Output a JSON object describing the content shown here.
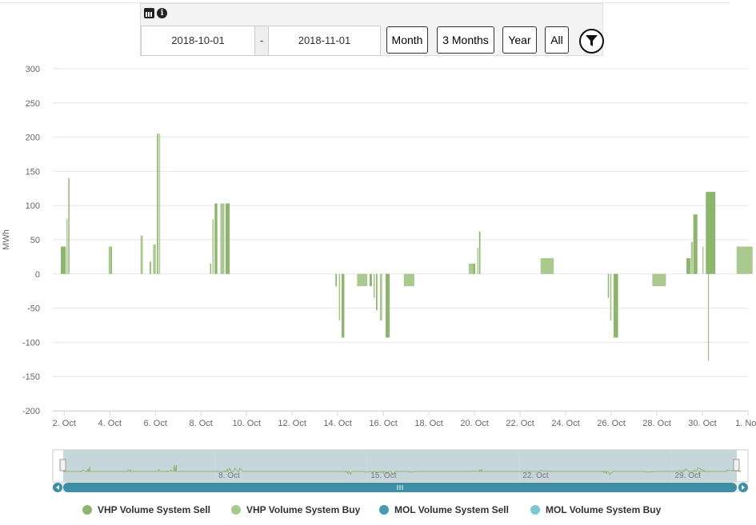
{
  "toolbar": {
    "start_date": "2018-10-01",
    "separator": "-",
    "end_date": "2018-11-01",
    "buttons": [
      "Month",
      "3 Months",
      "Year",
      "All"
    ]
  },
  "colors": {
    "vhp_sell": "#8db56e",
    "vhp_buy": "#a9c98f",
    "mol_sell": "#4a9ab1",
    "mol_buy": "#79c7cf",
    "grid": "#e6e6e6",
    "navigator_mask": "#b3c8cf",
    "scrollbar": "#3e8ea6"
  },
  "chart_data": {
    "type": "bar",
    "ylabel": "MWh",
    "ylim": [
      -200,
      300
    ],
    "yticks": [
      300,
      250,
      200,
      150,
      100,
      50,
      0,
      -50,
      -100,
      -150,
      -200
    ],
    "xlim": [
      1.5,
      32.0
    ],
    "xticks": [
      {
        "v": 2,
        "label": "2. Oct"
      },
      {
        "v": 4,
        "label": "4. Oct"
      },
      {
        "v": 6,
        "label": "6. Oct"
      },
      {
        "v": 8,
        "label": "8. Oct"
      },
      {
        "v": 10,
        "label": "10. Oct"
      },
      {
        "v": 12,
        "label": "12. Oct"
      },
      {
        "v": 14,
        "label": "14. Oct"
      },
      {
        "v": 16,
        "label": "16. Oct"
      },
      {
        "v": 18,
        "label": "18. Oct"
      },
      {
        "v": 20,
        "label": "20. Oct"
      },
      {
        "v": 22,
        "label": "22. Oct"
      },
      {
        "v": 24,
        "label": "24. Oct"
      },
      {
        "v": 26,
        "label": "26. Oct"
      },
      {
        "v": 28,
        "label": "28. Oct"
      },
      {
        "v": 30,
        "label": "30. Oct"
      },
      {
        "v": 32,
        "label": "1. Nov"
      }
    ],
    "navigator_labels": [
      {
        "v": 8,
        "label": "8. Oct"
      },
      {
        "v": 15,
        "label": "15. Oct"
      },
      {
        "v": 22,
        "label": "22. Oct"
      },
      {
        "v": 29,
        "label": "29. Oct"
      }
    ],
    "series": [
      {
        "name": "VHP Volume System Sell",
        "values": [
          [
            1.85,
            40,
            0.22
          ],
          [
            2.1,
            80,
            0.05
          ],
          [
            2.18,
            140,
            0.05
          ],
          [
            3.95,
            40,
            0.1
          ],
          [
            4.05,
            40,
            0.05
          ],
          [
            5.35,
            56,
            0.1
          ],
          [
            5.75,
            18,
            0.06
          ],
          [
            5.9,
            43,
            0.12
          ],
          [
            6.07,
            205,
            0.06
          ],
          [
            6.16,
            205,
            0.05
          ],
          [
            8.4,
            15,
            0.05
          ],
          [
            8.5,
            80,
            0.06
          ],
          [
            8.6,
            103,
            0.12
          ],
          [
            8.85,
            103,
            0.18
          ],
          [
            9.08,
            103,
            0.18
          ],
          [
            19.75,
            15,
            0.22
          ],
          [
            19.95,
            15,
            0.08
          ],
          [
            20.12,
            38,
            0.05
          ],
          [
            20.2,
            62,
            0.06
          ],
          [
            22.9,
            23,
            0.58
          ],
          [
            29.3,
            23,
            0.18
          ],
          [
            29.5,
            47,
            0.08
          ],
          [
            29.6,
            87,
            0.18
          ],
          [
            30.0,
            40,
            0.05
          ],
          [
            30.15,
            120,
            0.42
          ],
          [
            31.5,
            40,
            0.7
          ],
          [
            13.9,
            -18,
            0.06
          ],
          [
            14.05,
            -68,
            0.06
          ],
          [
            14.17,
            -93,
            0.12
          ],
          [
            14.85,
            -18,
            0.45
          ],
          [
            15.4,
            -18,
            0.1
          ],
          [
            15.57,
            -35,
            0.06
          ],
          [
            15.68,
            -53,
            0.06
          ],
          [
            15.85,
            -68,
            0.1
          ],
          [
            16.1,
            -93,
            0.18
          ],
          [
            16.9,
            -18,
            0.46
          ],
          [
            25.85,
            -35,
            0.05
          ],
          [
            25.95,
            -68,
            0.06
          ],
          [
            26.1,
            -93,
            0.2
          ],
          [
            27.8,
            -18,
            0.6
          ],
          [
            30.25,
            -127,
            0.03
          ]
        ]
      },
      {
        "name": "VHP Volume System Buy",
        "values": []
      },
      {
        "name": "MOL Volume System Sell",
        "values": []
      },
      {
        "name": "MOL Volume System Buy",
        "values": []
      }
    ]
  }
}
